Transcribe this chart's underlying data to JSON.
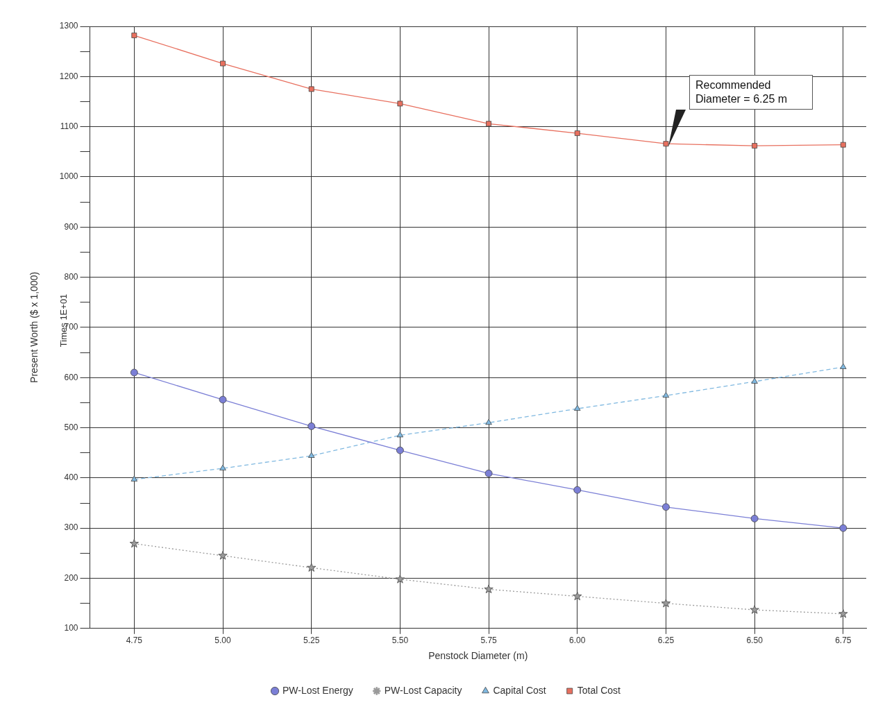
{
  "chart_data": {
    "type": "line",
    "xlabel": "Penstock Diameter (m)",
    "ylabel": "Present Worth ($ x 1,000)",
    "annotations": [
      "Times 1E+01",
      "Recommended Diameter = 6.25 m"
    ],
    "x": [
      4.75,
      5.0,
      5.25,
      5.5,
      5.75,
      6.0,
      6.25,
      6.5,
      6.75
    ],
    "series": [
      {
        "name": "PW-Lost Energy",
        "color": "#7b7fd6",
        "marker": "circle",
        "line_style": "solid",
        "values": [
          610,
          556,
          503,
          455,
          409,
          376,
          342,
          319,
          300
        ]
      },
      {
        "name": "PW-Lost Capacity",
        "color": "#9a9a9a",
        "marker": "star",
        "line_style": "dotted",
        "values": [
          269,
          245,
          221,
          198,
          178,
          164,
          150,
          137,
          129
        ]
      },
      {
        "name": "Capital Cost",
        "color": "#7fb8e0",
        "marker": "triangle",
        "line_style": "dashed",
        "values": [
          397,
          419,
          444,
          485,
          510,
          538,
          564,
          592,
          621
        ]
      },
      {
        "name": "Total Cost",
        "color": "#e8705f",
        "marker": "square",
        "line_style": "solid",
        "values": [
          1282,
          1226,
          1175,
          1146,
          1106,
          1087,
          1066,
          1062,
          1064
        ]
      }
    ],
    "xlim": [
      4.625,
      6.815
    ],
    "xticks": [
      {
        "value": 4.75,
        "label": "4.75"
      },
      {
        "value": 5.0,
        "label": "5.00"
      },
      {
        "value": 5.25,
        "label": "5.25"
      },
      {
        "value": 5.5,
        "label": "5.50"
      },
      {
        "value": 5.75,
        "label": "5.75"
      },
      {
        "value": 6.0,
        "label": "6.00"
      },
      {
        "value": 6.25,
        "label": "6.25"
      },
      {
        "value": 6.5,
        "label": "6.50"
      },
      {
        "value": 6.75,
        "label": "6.75"
      }
    ],
    "ylim": [
      100,
      1300
    ],
    "yticks": [
      100,
      {
        "value": 150,
        "label": null
      },
      200,
      {
        "value": 250,
        "label": null
      },
      300,
      {
        "value": 350,
        "label": null
      },
      400,
      {
        "value": 450,
        "label": null
      },
      500,
      {
        "value": 550,
        "label": null
      },
      600,
      {
        "value": 650,
        "label": null
      },
      700,
      {
        "value": 750,
        "label": null
      },
      800,
      {
        "value": 850,
        "label": null
      },
      900,
      {
        "value": 950,
        "label": null
      },
      1000,
      {
        "value": 1050,
        "label": null
      },
      1100,
      {
        "value": 1150,
        "label": null
      },
      1200,
      {
        "value": 1250,
        "label": null
      },
      1300
    ],
    "grid": true,
    "legend": "bottom"
  }
}
